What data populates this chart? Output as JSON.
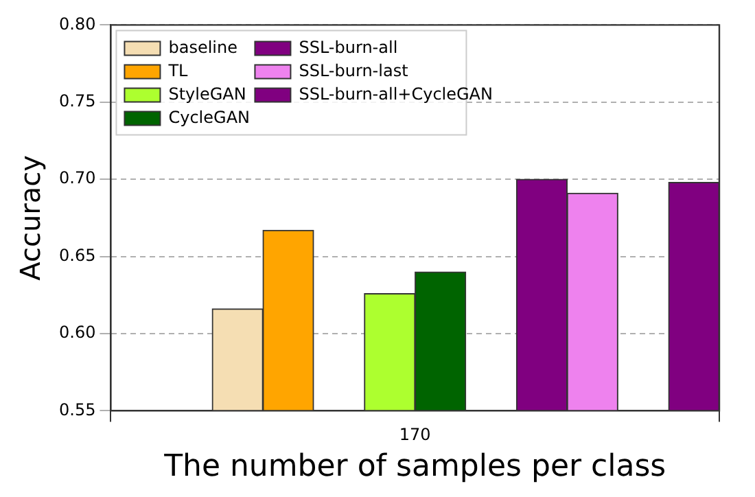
{
  "chart_data": {
    "type": "bar",
    "xlabel": "The number of samples per class",
    "ylabel": "Accuracy",
    "categories": [
      "170"
    ],
    "series": [
      {
        "name": "baseline",
        "color": "#f5deb3",
        "values": [
          0.616
        ]
      },
      {
        "name": "TL",
        "color": "#ffa500",
        "values": [
          0.667
        ]
      },
      {
        "name": "StyleGAN",
        "color": "#adff2f",
        "values": [
          0.626
        ]
      },
      {
        "name": "CycleGAN",
        "color": "#006400",
        "values": [
          0.64
        ]
      },
      {
        "name": "SSL-burn-all",
        "color": "#800080",
        "values": [
          0.7
        ]
      },
      {
        "name": "SSL-burn-last",
        "color": "#ee82ee",
        "values": [
          0.691
        ]
      },
      {
        "name": "SSL-burn-all+CycleGAN",
        "color": "#800080",
        "values": [
          0.698
        ]
      }
    ],
    "ylim": [
      0.55,
      0.8
    ],
    "yticks": [
      {
        "value": 0.55,
        "label": "0.55"
      },
      {
        "value": 0.6,
        "label": "0.60"
      },
      {
        "value": 0.65,
        "label": "0.65"
      },
      {
        "value": 0.7,
        "label": "0.70"
      },
      {
        "value": 0.75,
        "label": "0.75"
      },
      {
        "value": 0.8,
        "label": "0.80"
      }
    ],
    "grid": true,
    "legend": "top left"
  }
}
